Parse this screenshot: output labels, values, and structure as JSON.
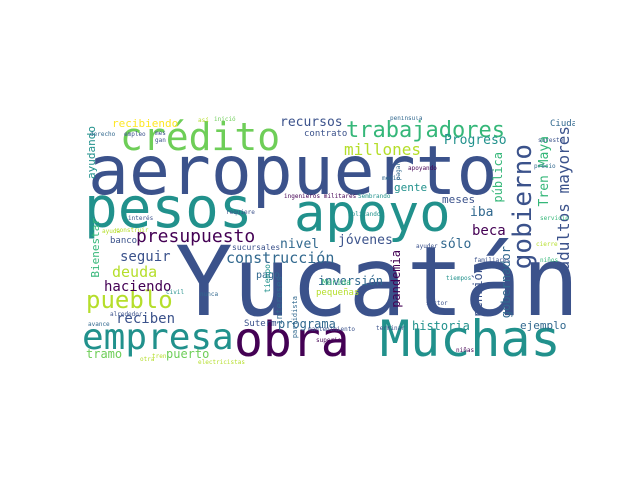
{
  "colors": {
    "dark_purple": "#440154",
    "indigo": "#3b528b",
    "blue": "#31688e",
    "teal": "#21918c",
    "green": "#35b779",
    "light_green": "#6ece58",
    "lime": "#b5de2b",
    "yellow": "#fde725"
  },
  "cloud": {
    "words": [
      "Yucatán",
      "aeropuerto",
      "pesos",
      "apoyo",
      "obra",
      "Muchas",
      "empresa",
      "crédito",
      "trabajadores",
      "gobierno",
      "presupuesto",
      "pueblo",
      "construcción",
      "millones",
      "adultos mayores",
      "Tren Maya",
      "recursos",
      "deuda",
      "haciendo",
      "reciben",
      "programa",
      "historia",
      "inversión",
      "jóvenes",
      "nivel",
      "seguir",
      "puerto",
      "tramo",
      "beca",
      "sólo",
      "iba",
      "meses",
      "gente",
      "pública",
      "Progreso",
      "gobernador",
      "pensión",
      "pandemia",
      "ayudando",
      "recibiendo",
      "contrato",
      "Ciudad",
      "ejemplo",
      "Bienestar",
      "banco",
      "pago",
      "sucursales",
      "intereses",
      "pequeñas",
      "Suterm",
      "Mérida",
      "tiempo",
      "partidista",
      "empleo",
      "derecho",
      "avance",
      "alrededor",
      "mes",
      "gan",
      "ingenieros militares",
      "requiere",
      "interés",
      "ayuda",
      "medio",
      "pagar",
      "apoyando",
      "inició",
      "península",
      "superior",
      "mantenimiento",
      "niñas",
      "familiares",
      "servicio",
      "sector",
      "electricistas",
      "construir",
      "sureste",
      "precio",
      "nunca",
      "civil",
      "aplicando",
      "Sembrando",
      "tiempos",
      "ayuder",
      "cierre",
      "niños",
      "tren",
      "terminar",
      "así",
      "otra"
    ]
  }
}
